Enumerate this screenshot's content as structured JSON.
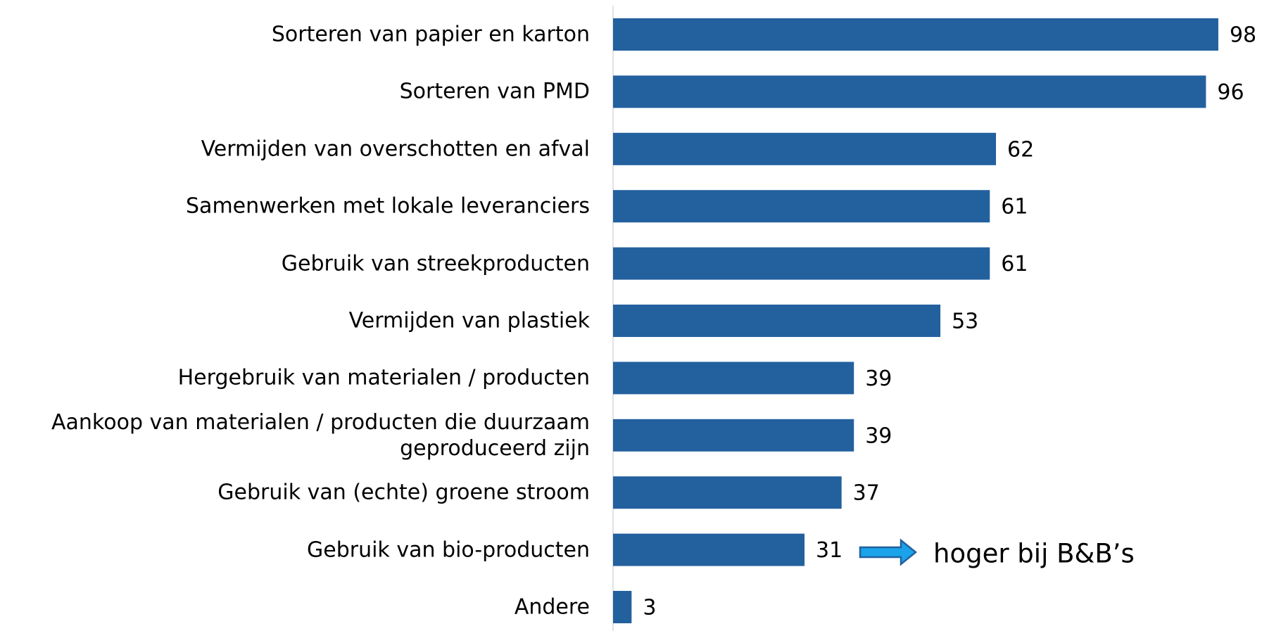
{
  "chart_data": {
    "type": "bar",
    "orientation": "horizontal",
    "categories": [
      "Sorteren van papier en karton",
      "Sorteren van PMD",
      "Vermijden van overschotten en afval",
      "Samenwerken met lokale leveranciers",
      "Gebruik van streekproducten",
      "Vermijden van plastiek",
      "Hergebruik van materialen / producten",
      "Aankoop van materialen / producten die duurzaam geproduceerd zijn",
      "Gebruik van (echte) groene stroom",
      "Gebruik van bio-producten",
      "Andere"
    ],
    "values": [
      98,
      96,
      62,
      61,
      61,
      53,
      39,
      39,
      37,
      31,
      3
    ],
    "color": "#23609e",
    "annotation": "hoger bij B&B’s"
  }
}
